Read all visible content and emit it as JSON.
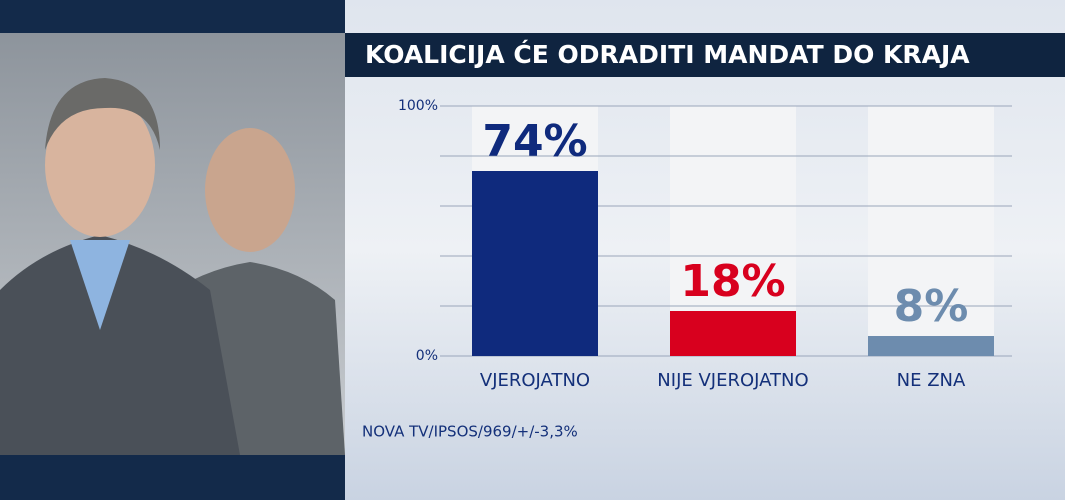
{
  "chart_data": {
    "type": "bar",
    "title": "KOALICIJA ĆE ODRADITI MANDAT DO KRAJA",
    "categories": [
      "VJEROJATNO",
      "NIJE VJEROJATNO",
      "NE ZNA"
    ],
    "values": [
      74,
      18,
      8
    ],
    "value_labels": [
      "74%",
      "18%",
      "8%"
    ],
    "colors": [
      "#0f2a7d",
      "#d8001e",
      "#6d8cae"
    ],
    "ylim": [
      0,
      100
    ],
    "yticks": [
      {
        "value": 0,
        "label": "0%"
      },
      {
        "value": 20,
        "label": null
      },
      {
        "value": 40,
        "label": null
      },
      {
        "value": 60,
        "label": null
      },
      {
        "value": 80,
        "label": null
      },
      {
        "value": 100,
        "label": "100%"
      }
    ],
    "grid": true,
    "source": "NOVA TV/IPSOS/969/+/-3,3%"
  }
}
